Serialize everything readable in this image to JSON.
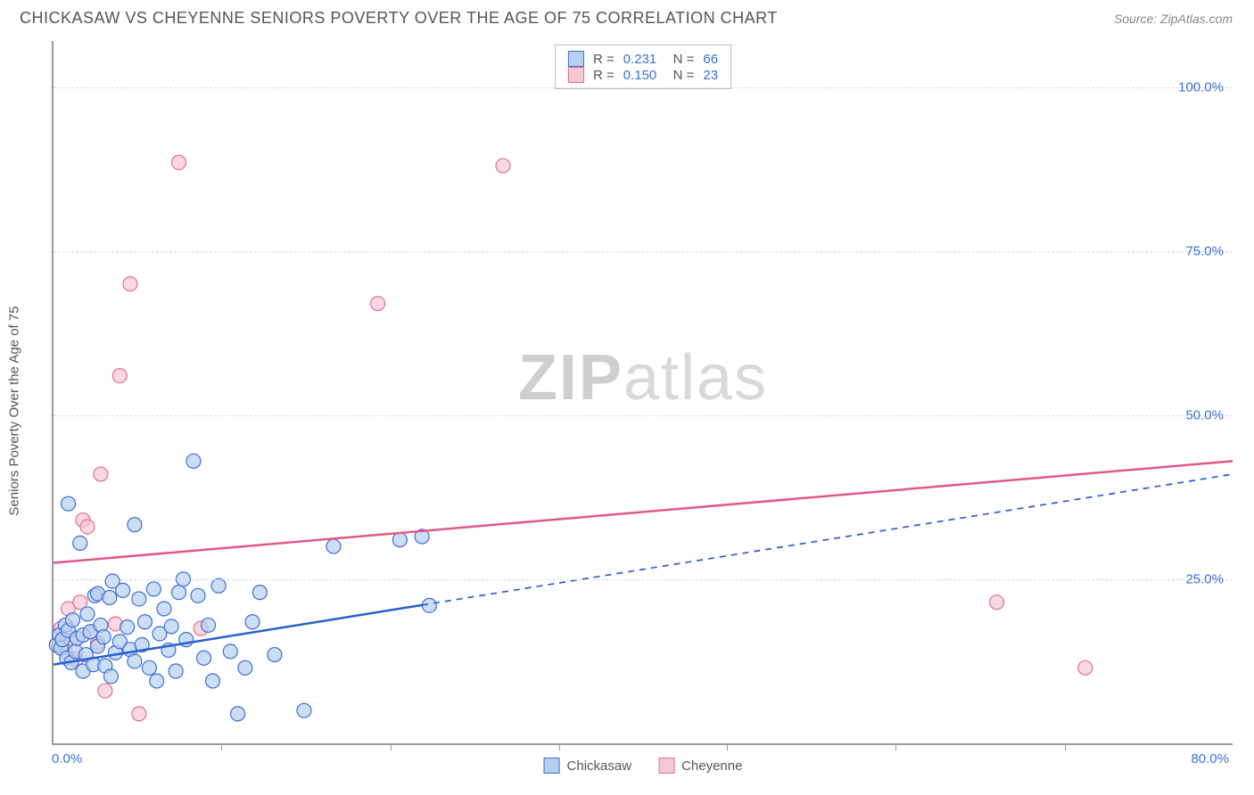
{
  "header": {
    "title": "CHICKASAW VS CHEYENNE SENIORS POVERTY OVER THE AGE OF 75 CORRELATION CHART",
    "source": "Source: ZipAtlas.com"
  },
  "chart": {
    "type": "scatter",
    "ylabel": "Seniors Poverty Over the Age of 75",
    "xlim": [
      0,
      80
    ],
    "ylim": [
      0,
      107
    ],
    "xticks": [
      0,
      80
    ],
    "xtick_labels": [
      "0.0%",
      "80.0%"
    ],
    "xtick_minor": [
      11.4,
      22.9,
      34.3,
      45.7,
      57.1,
      68.6
    ],
    "yticks": [
      25,
      50,
      75,
      100
    ],
    "ytick_labels": [
      "25.0%",
      "50.0%",
      "75.0%",
      "100.0%"
    ],
    "background_color": "#ffffff",
    "grid_color": "#dcdcdc",
    "axis_color": "#999999",
    "tick_label_color": "#3b6fd6",
    "label_color": "#555555",
    "marker_radius": 8,
    "marker_stroke_width": 1.2,
    "series": [
      {
        "name": "Chickasaw",
        "fill": "#b7d0ef",
        "stroke": "#3b6fd6",
        "fill_opacity": 0.7,
        "R": "0.231",
        "N": "66",
        "regression": {
          "x1": 0,
          "y1": 12,
          "x2": 80,
          "y2": 41,
          "solid_to_x": 25,
          "color": "#2a5fcf",
          "width": 2.5
        },
        "points": [
          [
            0.2,
            15
          ],
          [
            0.4,
            16.5
          ],
          [
            0.5,
            14.5
          ],
          [
            0.6,
            15.8
          ],
          [
            0.8,
            18
          ],
          [
            0.9,
            13
          ],
          [
            1.0,
            17.2
          ],
          [
            1.0,
            36.5
          ],
          [
            1.2,
            12.3
          ],
          [
            1.3,
            18.8
          ],
          [
            1.5,
            14.0
          ],
          [
            1.6,
            16.0
          ],
          [
            1.8,
            30.5
          ],
          [
            2.0,
            11.0
          ],
          [
            2.0,
            16.5
          ],
          [
            2.2,
            13.5
          ],
          [
            2.3,
            19.7
          ],
          [
            2.5,
            17.0
          ],
          [
            2.7,
            12.0
          ],
          [
            2.8,
            22.5
          ],
          [
            3.0,
            14.8
          ],
          [
            3.0,
            22.8
          ],
          [
            3.2,
            18.0
          ],
          [
            3.4,
            16.2
          ],
          [
            3.5,
            11.8
          ],
          [
            3.8,
            22.2
          ],
          [
            3.9,
            10.2
          ],
          [
            4.0,
            24.7
          ],
          [
            4.2,
            13.8
          ],
          [
            4.5,
            15.5
          ],
          [
            4.7,
            23.3
          ],
          [
            5.0,
            17.7
          ],
          [
            5.2,
            14.3
          ],
          [
            5.5,
            33.3
          ],
          [
            5.5,
            12.5
          ],
          [
            5.8,
            22.0
          ],
          [
            6.0,
            15.0
          ],
          [
            6.2,
            18.5
          ],
          [
            6.5,
            11.5
          ],
          [
            6.8,
            23.5
          ],
          [
            7.0,
            9.5
          ],
          [
            7.2,
            16.7
          ],
          [
            7.5,
            20.5
          ],
          [
            7.8,
            14.2
          ],
          [
            8.0,
            17.8
          ],
          [
            8.3,
            11.0
          ],
          [
            8.5,
            23.0
          ],
          [
            8.8,
            25.0
          ],
          [
            9.0,
            15.8
          ],
          [
            9.5,
            43.0
          ],
          [
            9.8,
            22.5
          ],
          [
            10.2,
            13.0
          ],
          [
            10.5,
            18.0
          ],
          [
            10.8,
            9.5
          ],
          [
            11.2,
            24.0
          ],
          [
            12.0,
            14.0
          ],
          [
            12.5,
            4.5
          ],
          [
            13.0,
            11.5
          ],
          [
            13.5,
            18.5
          ],
          [
            14.0,
            23.0
          ],
          [
            15.0,
            13.5
          ],
          [
            17.0,
            5.0
          ],
          [
            19.0,
            30.0
          ],
          [
            23.5,
            31.0
          ],
          [
            25.0,
            31.5
          ],
          [
            25.5,
            21.0
          ]
        ]
      },
      {
        "name": "Cheyenne",
        "fill": "#f6c8d5",
        "stroke": "#e36f8f",
        "fill_opacity": 0.7,
        "R": "0.150",
        "N": "23",
        "regression": {
          "x1": 0,
          "y1": 27.5,
          "x2": 80,
          "y2": 43,
          "solid_to_x": 80,
          "color": "#e05a80",
          "width": 2.5
        },
        "points": [
          [
            0.3,
            15.2
          ],
          [
            0.5,
            17.5
          ],
          [
            0.8,
            14.0
          ],
          [
            1.0,
            20.5
          ],
          [
            1.2,
            16.0
          ],
          [
            1.5,
            12.8
          ],
          [
            1.8,
            21.5
          ],
          [
            2.0,
            34.0
          ],
          [
            2.3,
            33.0
          ],
          [
            2.5,
            17.0
          ],
          [
            3.0,
            15.3
          ],
          [
            3.2,
            41.0
          ],
          [
            3.5,
            8.0
          ],
          [
            4.2,
            18.2
          ],
          [
            4.5,
            56.0
          ],
          [
            5.2,
            70.0
          ],
          [
            5.8,
            4.5
          ],
          [
            8.5,
            88.5
          ],
          [
            10.0,
            17.5
          ],
          [
            22.0,
            67.0
          ],
          [
            30.5,
            88.0
          ],
          [
            64.0,
            21.5
          ],
          [
            70.0,
            11.5
          ]
        ]
      }
    ],
    "legend_top": [
      {
        "swatch": "blue",
        "R": "0.231",
        "N": "66"
      },
      {
        "swatch": "pink",
        "R": "0.150",
        "N": "23"
      }
    ],
    "legend_bottom": [
      {
        "swatch": "blue",
        "label": "Chickasaw"
      },
      {
        "swatch": "pink",
        "label": "Cheyenne"
      }
    ],
    "watermark": {
      "bold": "ZIP",
      "rest": "atlas"
    }
  }
}
